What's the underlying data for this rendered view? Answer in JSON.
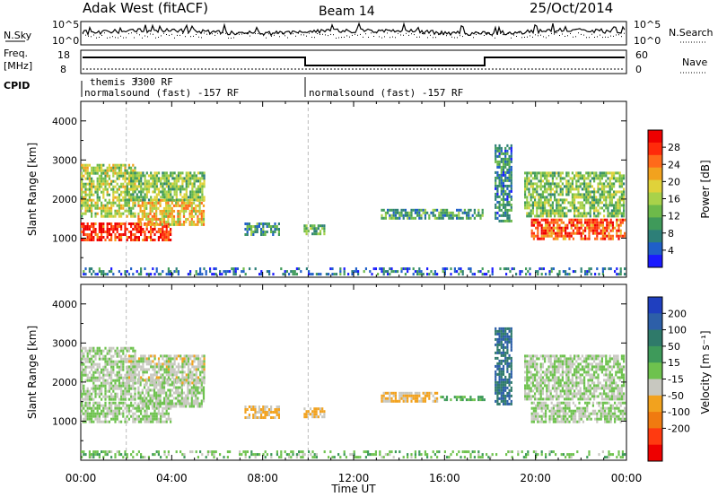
{
  "header": {
    "radar": "Adak West (fitACF)",
    "beam": "Beam 14",
    "date": "25/Oct/2014"
  },
  "top_panels": {
    "nsky": {
      "left_label": "N.Sky",
      "left_ticks": [
        "10^5",
        "10^0"
      ],
      "right_label": "N.Search",
      "right_ticks": [
        "10^5",
        "10^0"
      ]
    },
    "freq": {
      "left_label_line1": "Freq.",
      "left_label_line2": "[MHz]",
      "left_ticks": [
        "18",
        "8"
      ],
      "right_ticks": [
        "60",
        "0"
      ],
      "right_label": "Nave"
    },
    "cpid": {
      "label": "CPID",
      "programs": [
        {
          "name": "themis 3300 RF",
          "start_hour": 1.5,
          "end_hour": 10
        },
        {
          "name": "normalsound (fast) -157 RF",
          "start_hour": 0,
          "end_hour": 10
        },
        {
          "name": "normalsound (fast) -157 RF",
          "start_hour": 10,
          "end_hour": 24
        }
      ]
    }
  },
  "chart_data": [
    {
      "type": "heatmap",
      "panel": "power",
      "xlabel": "",
      "ylabel": "Slant Range [km]",
      "xlim": [
        0,
        24
      ],
      "ylim": [
        0,
        4500
      ],
      "y_ticks": [
        "1000",
        "2000",
        "3000",
        "4000"
      ],
      "colorbar": {
        "label": "Power [dB]",
        "ticks": [
          "4",
          "8",
          "12",
          "16",
          "20",
          "24",
          "28"
        ],
        "range": [
          0,
          32
        ],
        "colors": [
          "#1a1aff",
          "#1f5fc8",
          "#2d7f78",
          "#3f9a5a",
          "#6dba4a",
          "#a9d24a",
          "#e0d23a",
          "#f2a21e",
          "#ff6a1a",
          "#ff2a0a",
          "#ee0000"
        ]
      },
      "echo_regions": [
        {
          "t0": 0.0,
          "t1": 4.0,
          "r0": 900,
          "r1": 1400,
          "value": 28
        },
        {
          "t0": 2.5,
          "t1": 5.5,
          "r0": 1300,
          "r1": 2000,
          "value": 20
        },
        {
          "t0": 0.0,
          "t1": 2.5,
          "r0": 1500,
          "r1": 2900,
          "value": 16
        },
        {
          "t0": 2.0,
          "t1": 5.5,
          "r0": 1900,
          "r1": 2700,
          "value": 14
        },
        {
          "t0": 7.2,
          "t1": 8.8,
          "r0": 1000,
          "r1": 1400,
          "value": 10
        },
        {
          "t0": 9.8,
          "t1": 10.8,
          "r0": 1050,
          "r1": 1350,
          "value": 12
        },
        {
          "t0": 13.2,
          "t1": 17.8,
          "r0": 1450,
          "r1": 1750,
          "value": 10
        },
        {
          "t0": 18.2,
          "t1": 19.0,
          "r0": 1400,
          "r1": 3400,
          "value": 8
        },
        {
          "t0": 19.8,
          "t1": 24.0,
          "r0": 900,
          "r1": 1500,
          "value": 26
        },
        {
          "t0": 19.5,
          "t1": 24.0,
          "r0": 1500,
          "r1": 2700,
          "value": 14
        },
        {
          "t0": 0.0,
          "t1": 24.0,
          "r0": 0,
          "r1": 250,
          "value": 6
        }
      ]
    },
    {
      "type": "heatmap",
      "panel": "velocity",
      "xlabel": "Time UT",
      "ylabel": "Slant Range [km]",
      "xlim": [
        0,
        24
      ],
      "ylim": [
        0,
        4500
      ],
      "x_ticks": [
        "00:00",
        "04:00",
        "08:00",
        "12:00",
        "16:00",
        "20:00",
        "00:00"
      ],
      "y_ticks": [
        "1000",
        "2000",
        "3000",
        "4000"
      ],
      "colorbar": {
        "label": "Velocity [m s⁻¹]",
        "ticks": [
          "200",
          "100",
          "50",
          "15",
          "-15",
          "-50",
          "-100",
          "-200"
        ],
        "range": [
          -250,
          250
        ],
        "colors": [
          "#1f3fbf",
          "#2d5fa8",
          "#2f7a6a",
          "#3e9a5a",
          "#6ec24e",
          "#c8c8c0",
          "#f2a21e",
          "#f07a10",
          "#ff3a10",
          "#ee0000"
        ]
      },
      "echo_regions": [
        {
          "t0": 0.0,
          "t1": 4.0,
          "r0": 900,
          "r1": 1500,
          "value": 0
        },
        {
          "t0": 2.5,
          "t1": 5.5,
          "r0": 1300,
          "r1": 2100,
          "value": 0
        },
        {
          "t0": 0.0,
          "t1": 2.5,
          "r0": 1500,
          "r1": 2900,
          "value": 0
        },
        {
          "t0": 2.0,
          "t1": 5.5,
          "r0": 1900,
          "r1": 2700,
          "value": -20
        },
        {
          "t0": 7.2,
          "t1": 8.8,
          "r0": 1000,
          "r1": 1400,
          "value": -60
        },
        {
          "t0": 9.8,
          "t1": 10.8,
          "r0": 1050,
          "r1": 1350,
          "value": -60
        },
        {
          "t0": 13.2,
          "t1": 15.8,
          "r0": 1450,
          "r1": 1750,
          "value": -60
        },
        {
          "t0": 15.8,
          "t1": 17.8,
          "r0": 1450,
          "r1": 1650,
          "value": 60
        },
        {
          "t0": 18.2,
          "t1": 19.0,
          "r0": 1400,
          "r1": 3400,
          "value": 150
        },
        {
          "t0": 19.8,
          "t1": 24.0,
          "r0": 900,
          "r1": 1500,
          "value": 0
        },
        {
          "t0": 19.5,
          "t1": 24.0,
          "r0": 1500,
          "r1": 2700,
          "value": 0
        },
        {
          "t0": 0.0,
          "t1": 24.0,
          "r0": 0,
          "r1": 250,
          "value": 30
        }
      ]
    }
  ]
}
